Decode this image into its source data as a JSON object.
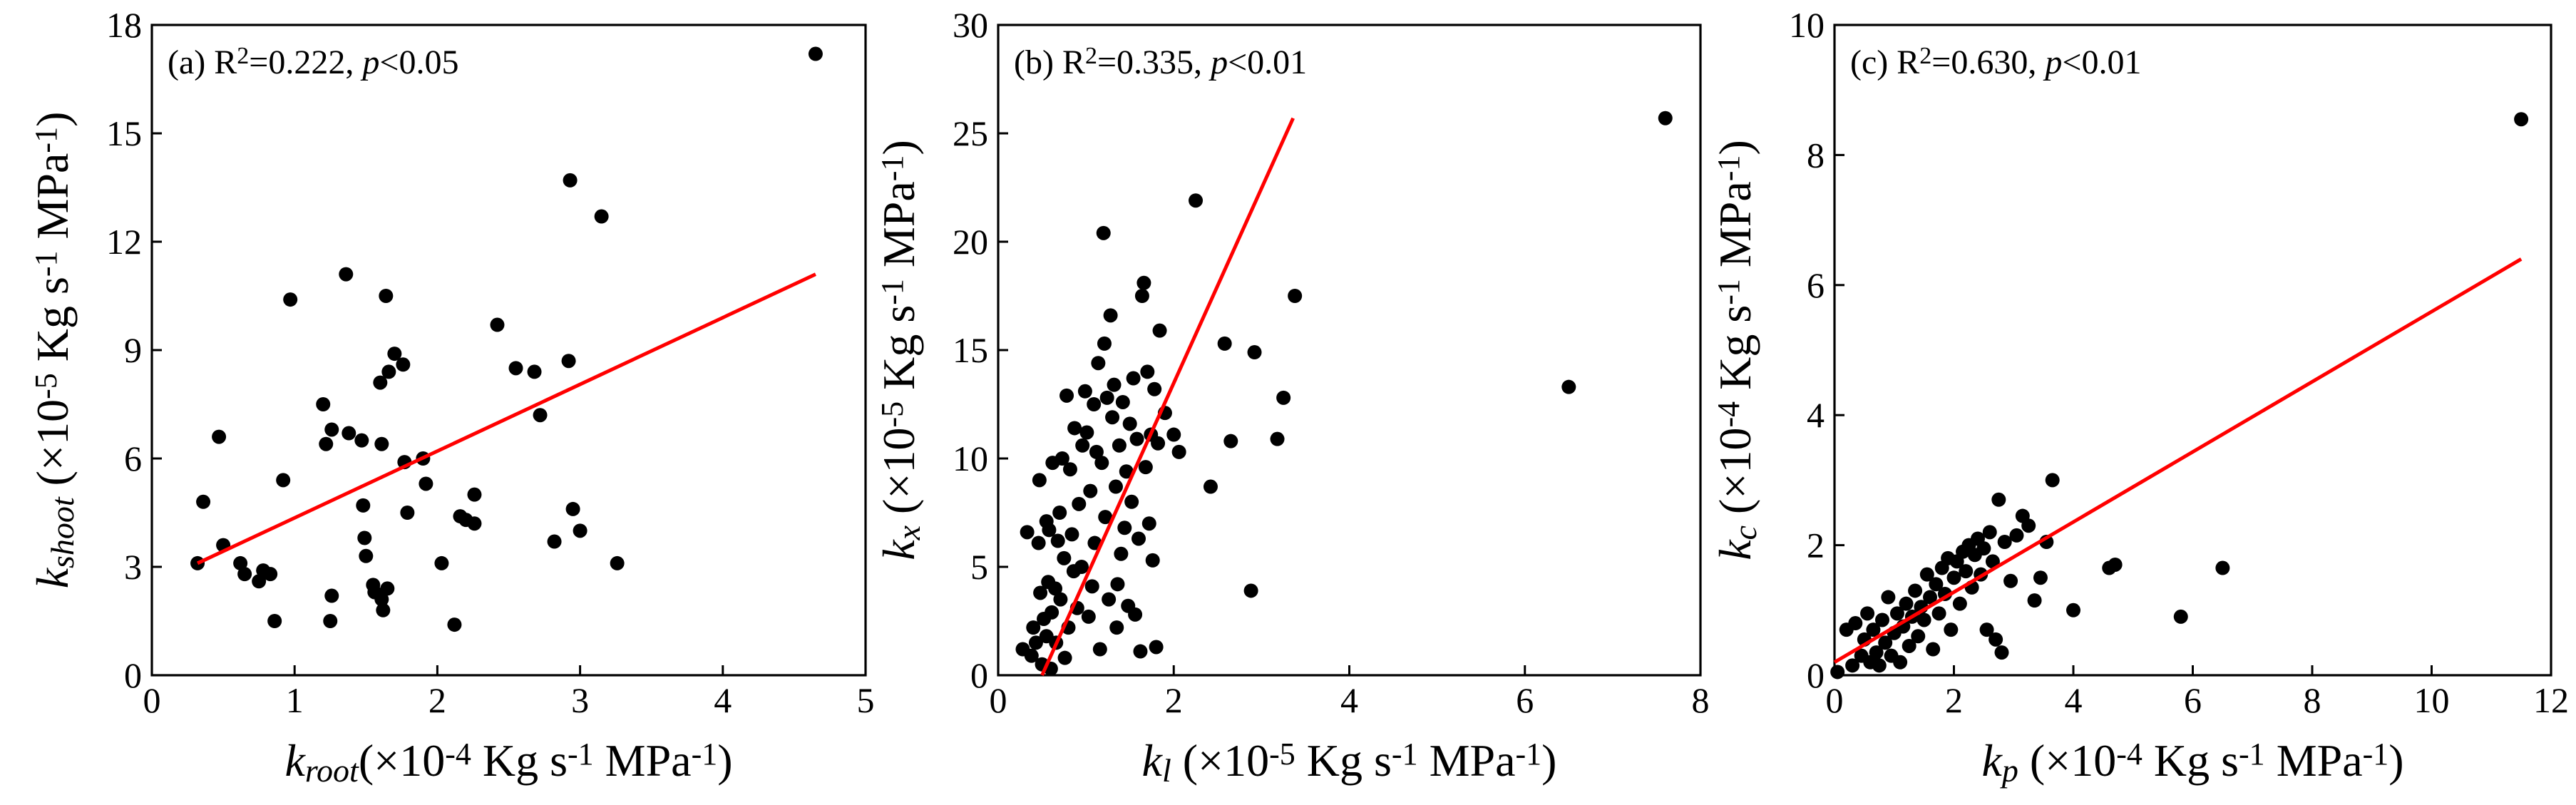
{
  "chart_data": [
    {
      "type": "scatter",
      "panel": "a",
      "annotation": {
        "label": "(a)",
        "r2": "0.222",
        "p": "0.05"
      },
      "xlabel": {
        "var": "k",
        "sub": "root",
        "unit": "(×10",
        "exp": "-4",
        "unit2": " Kg s",
        "exp2": "-1",
        "unit3": " MPa",
        "exp3": "-1",
        "close": ")"
      },
      "ylabel": {
        "var": "k",
        "sub": "shoot",
        "unit": " (×10",
        "exp": "-5",
        "unit2": " Kg s",
        "exp2": "-1",
        "unit3": " MPa",
        "exp3": "-1",
        "close": ")"
      },
      "xlim": [
        0,
        5
      ],
      "ylim": [
        0,
        18
      ],
      "xticks": [
        0,
        1,
        2,
        3,
        4,
        5
      ],
      "yticks": [
        0,
        3,
        6,
        9,
        12,
        15,
        18
      ],
      "fit": {
        "x": [
          0.32,
          4.65
        ],
        "y": [
          3.1,
          11.1
        ]
      },
      "points": [
        [
          0.32,
          3.1
        ],
        [
          0.36,
          4.8
        ],
        [
          0.47,
          6.6
        ],
        [
          0.5,
          3.6
        ],
        [
          0.62,
          3.1
        ],
        [
          0.65,
          2.8
        ],
        [
          0.75,
          2.6
        ],
        [
          0.78,
          2.9
        ],
        [
          0.83,
          2.8
        ],
        [
          0.86,
          1.5
        ],
        [
          0.92,
          5.4
        ],
        [
          0.97,
          10.4
        ],
        [
          1.2,
          7.5
        ],
        [
          1.22,
          6.4
        ],
        [
          1.25,
          1.5
        ],
        [
          1.26,
          6.8
        ],
        [
          1.26,
          2.2
        ],
        [
          1.36,
          11.1
        ],
        [
          1.38,
          6.7
        ],
        [
          1.47,
          6.5
        ],
        [
          1.48,
          4.7
        ],
        [
          1.49,
          3.8
        ],
        [
          1.5,
          3.3
        ],
        [
          1.55,
          2.5
        ],
        [
          1.56,
          2.3
        ],
        [
          1.6,
          8.1
        ],
        [
          1.61,
          6.4
        ],
        [
          1.61,
          2.1
        ],
        [
          1.62,
          1.8
        ],
        [
          1.64,
          10.5
        ],
        [
          1.65,
          2.4
        ],
        [
          1.66,
          8.4
        ],
        [
          1.7,
          8.9
        ],
        [
          1.76,
          8.6
        ],
        [
          1.77,
          5.9
        ],
        [
          1.79,
          4.5
        ],
        [
          1.9,
          6.0
        ],
        [
          1.92,
          5.3
        ],
        [
          2.03,
          3.1
        ],
        [
          2.12,
          1.4
        ],
        [
          2.16,
          4.4
        ],
        [
          2.2,
          4.3
        ],
        [
          2.26,
          4.2
        ],
        [
          2.26,
          5.0
        ],
        [
          2.42,
          9.7
        ],
        [
          2.55,
          8.5
        ],
        [
          2.68,
          8.4
        ],
        [
          2.72,
          7.2
        ],
        [
          2.82,
          3.7
        ],
        [
          2.92,
          8.7
        ],
        [
          2.93,
          13.7
        ],
        [
          2.95,
          4.6
        ],
        [
          3.0,
          4.0
        ],
        [
          3.15,
          12.7
        ],
        [
          3.26,
          3.1
        ],
        [
          4.65,
          17.2
        ]
      ]
    },
    {
      "type": "scatter",
      "panel": "b",
      "annotation": {
        "label": "(b)",
        "r2": "0.335",
        "p": "0.01"
      },
      "xlabel": {
        "var": "k",
        "sub": "l",
        "unit": " (×10",
        "exp": "-5",
        "unit2": " Kg s",
        "exp2": "-1",
        "unit3": " MPa",
        "exp3": "-1",
        "close": ")"
      },
      "ylabel": {
        "var": "k",
        "sub": "x",
        "unit": " (×10",
        "exp": "-5",
        "unit2": " Kg s",
        "exp2": "-1",
        "unit3": " MPa",
        "exp3": "-1",
        "close": ")"
      },
      "xlim": [
        0,
        8
      ],
      "ylim": [
        0,
        30
      ],
      "xticks": [
        0,
        2,
        4,
        6,
        8
      ],
      "yticks": [
        0,
        5,
        10,
        15,
        20,
        25,
        30
      ],
      "fit": {
        "x": [
          0.5,
          3.36
        ],
        "y": [
          0.0,
          25.7
        ]
      },
      "points": [
        [
          0.28,
          1.2
        ],
        [
          0.33,
          6.6
        ],
        [
          0.38,
          0.9
        ],
        [
          0.4,
          2.2
        ],
        [
          0.43,
          1.5
        ],
        [
          0.46,
          6.1
        ],
        [
          0.47,
          9.0
        ],
        [
          0.48,
          3.8
        ],
        [
          0.5,
          0.5
        ],
        [
          0.52,
          2.6
        ],
        [
          0.55,
          7.1
        ],
        [
          0.55,
          1.8
        ],
        [
          0.57,
          4.3
        ],
        [
          0.58,
          6.7
        ],
        [
          0.6,
          0.3
        ],
        [
          0.61,
          2.9
        ],
        [
          0.62,
          9.8
        ],
        [
          0.65,
          4.0
        ],
        [
          0.66,
          1.5
        ],
        [
          0.68,
          6.2
        ],
        [
          0.7,
          7.5
        ],
        [
          0.71,
          3.5
        ],
        [
          0.73,
          10.0
        ],
        [
          0.75,
          5.4
        ],
        [
          0.76,
          0.8
        ],
        [
          0.78,
          12.9
        ],
        [
          0.8,
          2.2
        ],
        [
          0.82,
          9.5
        ],
        [
          0.84,
          6.5
        ],
        [
          0.86,
          4.8
        ],
        [
          0.87,
          11.4
        ],
        [
          0.9,
          3.1
        ],
        [
          0.92,
          7.9
        ],
        [
          0.95,
          5.0
        ],
        [
          0.96,
          10.6
        ],
        [
          0.99,
          13.1
        ],
        [
          1.01,
          11.2
        ],
        [
          1.03,
          2.7
        ],
        [
          1.05,
          8.5
        ],
        [
          1.07,
          4.1
        ],
        [
          1.09,
          12.5
        ],
        [
          1.1,
          6.1
        ],
        [
          1.12,
          10.3
        ],
        [
          1.14,
          14.4
        ],
        [
          1.16,
          1.2
        ],
        [
          1.18,
          9.8
        ],
        [
          1.2,
          20.4
        ],
        [
          1.21,
          15.3
        ],
        [
          1.22,
          7.3
        ],
        [
          1.24,
          12.8
        ],
        [
          1.26,
          3.5
        ],
        [
          1.28,
          16.6
        ],
        [
          1.3,
          11.9
        ],
        [
          1.32,
          13.4
        ],
        [
          1.34,
          8.7
        ],
        [
          1.35,
          2.2
        ],
        [
          1.36,
          4.2
        ],
        [
          1.38,
          10.6
        ],
        [
          1.4,
          5.6
        ],
        [
          1.42,
          12.6
        ],
        [
          1.44,
          6.8
        ],
        [
          1.46,
          9.4
        ],
        [
          1.48,
          3.2
        ],
        [
          1.5,
          11.6
        ],
        [
          1.52,
          8.0
        ],
        [
          1.54,
          13.7
        ],
        [
          1.56,
          2.8
        ],
        [
          1.58,
          10.9
        ],
        [
          1.6,
          6.3
        ],
        [
          1.62,
          1.1
        ],
        [
          1.64,
          17.5
        ],
        [
          1.66,
          18.1
        ],
        [
          1.68,
          9.6
        ],
        [
          1.7,
          14.0
        ],
        [
          1.72,
          7.0
        ],
        [
          1.74,
          11.1
        ],
        [
          1.76,
          5.3
        ],
        [
          1.78,
          13.2
        ],
        [
          1.8,
          1.3
        ],
        [
          1.82,
          10.7
        ],
        [
          1.84,
          15.9
        ],
        [
          1.9,
          12.1
        ],
        [
          2.0,
          11.1
        ],
        [
          2.06,
          10.3
        ],
        [
          2.25,
          21.9
        ],
        [
          2.42,
          8.7
        ],
        [
          2.58,
          15.3
        ],
        [
          2.65,
          10.8
        ],
        [
          2.88,
          3.9
        ],
        [
          2.92,
          14.9
        ],
        [
          3.18,
          10.9
        ],
        [
          3.25,
          12.8
        ],
        [
          3.38,
          17.5
        ],
        [
          6.5,
          13.3
        ],
        [
          7.6,
          25.7
        ]
      ]
    },
    {
      "type": "scatter",
      "panel": "c",
      "annotation": {
        "label": "(c)",
        "r2": "0.630",
        "p": "0.01"
      },
      "xlabel": {
        "var": "k",
        "sub": "p",
        "unit": " (×10",
        "exp": "-4",
        "unit2": " Kg s",
        "exp2": "-1",
        "unit3": " MPa",
        "exp3": "-1",
        "close": ")"
      },
      "ylabel": {
        "var": "k",
        "sub": "c",
        "unit": " (×10",
        "exp": "-4",
        "unit2": " Kg s",
        "exp2": "-1",
        "unit3": " MPa",
        "exp3": "-1",
        "close": ")"
      },
      "xlim": [
        0,
        12
      ],
      "ylim": [
        0,
        10
      ],
      "xticks": [
        0,
        2,
        4,
        6,
        8,
        10,
        12
      ],
      "yticks": [
        0,
        2,
        4,
        6,
        8,
        10
      ],
      "fit": {
        "x": [
          0.0,
          11.5
        ],
        "y": [
          0.2,
          6.4
        ]
      },
      "points": [
        [
          0.05,
          0.05
        ],
        [
          0.2,
          0.7
        ],
        [
          0.3,
          0.15
        ],
        [
          0.35,
          0.8
        ],
        [
          0.45,
          0.3
        ],
        [
          0.5,
          0.55
        ],
        [
          0.55,
          0.95
        ],
        [
          0.6,
          0.2
        ],
        [
          0.65,
          0.7
        ],
        [
          0.7,
          0.35
        ],
        [
          0.75,
          0.15
        ],
        [
          0.8,
          0.85
        ],
        [
          0.85,
          0.5
        ],
        [
          0.9,
          1.2
        ],
        [
          0.95,
          0.3
        ],
        [
          1.0,
          0.65
        ],
        [
          1.05,
          0.95
        ],
        [
          1.1,
          0.2
        ],
        [
          1.15,
          0.75
        ],
        [
          1.2,
          1.1
        ],
        [
          1.25,
          0.45
        ],
        [
          1.3,
          0.9
        ],
        [
          1.35,
          1.3
        ],
        [
          1.4,
          0.6
        ],
        [
          1.45,
          1.05
        ],
        [
          1.5,
          0.85
        ],
        [
          1.55,
          1.55
        ],
        [
          1.6,
          1.2
        ],
        [
          1.65,
          0.4
        ],
        [
          1.7,
          1.4
        ],
        [
          1.75,
          0.95
        ],
        [
          1.8,
          1.65
        ],
        [
          1.85,
          1.25
        ],
        [
          1.9,
          1.8
        ],
        [
          1.95,
          0.7
        ],
        [
          2.0,
          1.5
        ],
        [
          2.05,
          1.75
        ],
        [
          2.1,
          1.1
        ],
        [
          2.15,
          1.9
        ],
        [
          2.2,
          1.6
        ],
        [
          2.25,
          2.0
        ],
        [
          2.3,
          1.35
        ],
        [
          2.35,
          1.85
        ],
        [
          2.4,
          2.1
        ],
        [
          2.45,
          1.55
        ],
        [
          2.5,
          1.95
        ],
        [
          2.55,
          0.7
        ],
        [
          2.6,
          2.2
        ],
        [
          2.65,
          1.75
        ],
        [
          2.7,
          0.55
        ],
        [
          2.75,
          2.7
        ],
        [
          2.8,
          0.35
        ],
        [
          2.85,
          2.05
        ],
        [
          2.95,
          1.45
        ],
        [
          3.05,
          2.15
        ],
        [
          3.15,
          2.45
        ],
        [
          3.25,
          2.3
        ],
        [
          3.35,
          1.15
        ],
        [
          3.45,
          1.5
        ],
        [
          3.55,
          2.05
        ],
        [
          3.65,
          3.0
        ],
        [
          4.0,
          1.0
        ],
        [
          4.6,
          1.65
        ],
        [
          4.7,
          1.7
        ],
        [
          5.8,
          0.9
        ],
        [
          6.5,
          1.65
        ],
        [
          11.5,
          8.55
        ]
      ]
    }
  ]
}
